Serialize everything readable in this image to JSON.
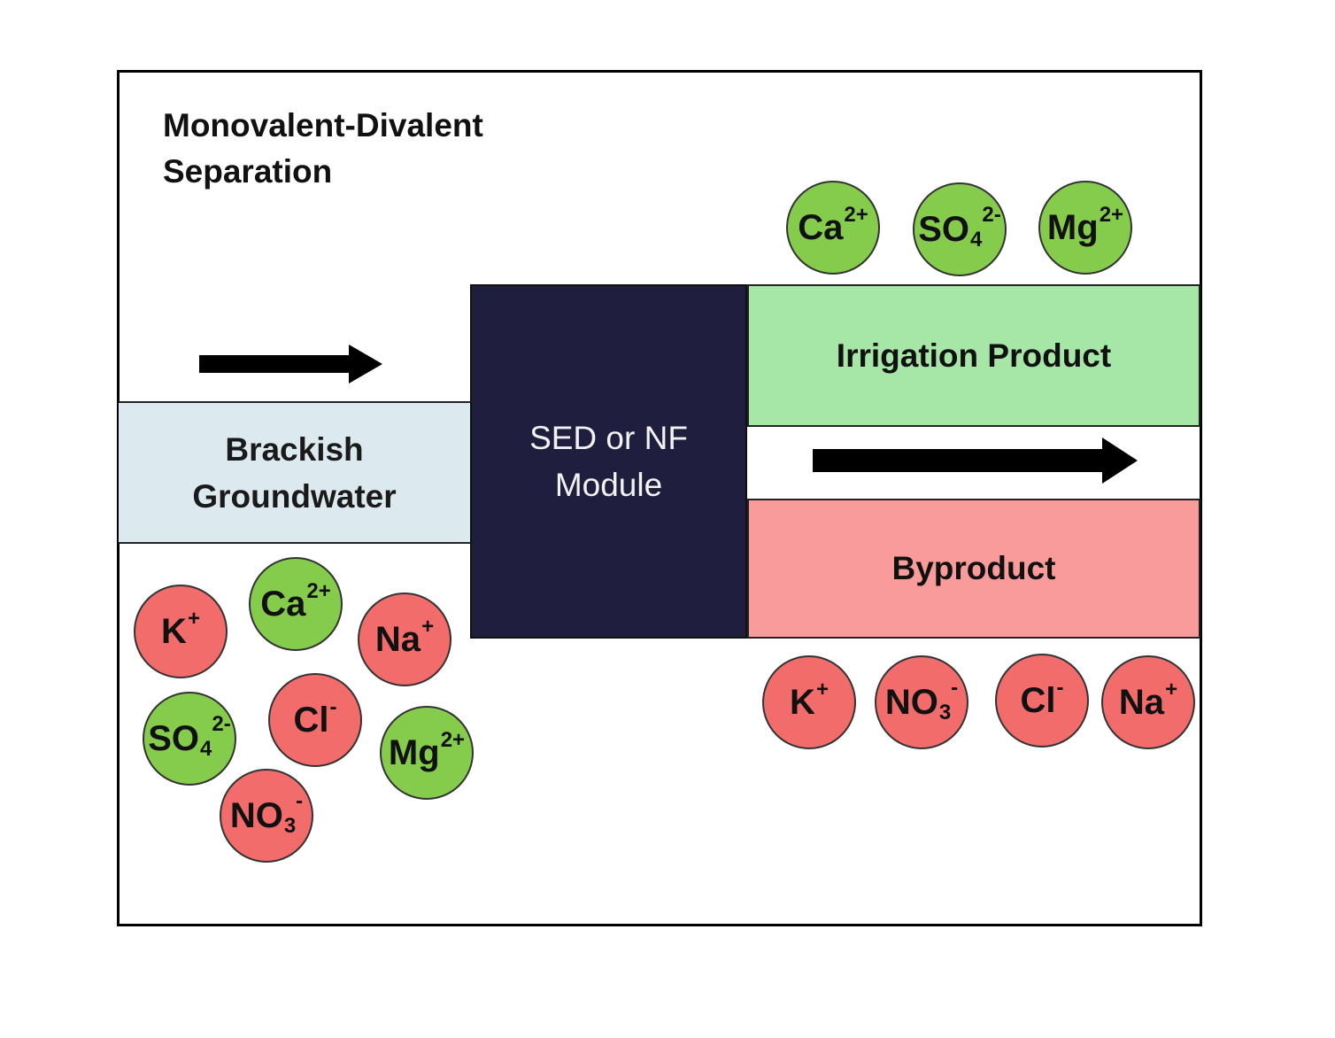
{
  "title": {
    "line1": "Monovalent-Divalent",
    "line2": "Separation"
  },
  "feed": {
    "line1": "Brackish",
    "line2": "Groundwater"
  },
  "module": {
    "line1": "SED or NF",
    "line2": "Module"
  },
  "irrigation": {
    "label": "Irrigation Product"
  },
  "byproduct": {
    "label": "Byproduct"
  },
  "colors": {
    "divalent": "#86cc4c",
    "monovalent": "#f26c6c",
    "feed_fill": "#dce9ef",
    "module_fill": "#1f1e3e",
    "irrigation_fill": "#a6e6a6",
    "byproduct_fill": "#f99b9b"
  },
  "ions": {
    "feed": [
      {
        "base": "K",
        "sub": "",
        "sup": "+",
        "type": "monovalent"
      },
      {
        "base": "Ca",
        "sub": "",
        "sup": "2+",
        "type": "divalent"
      },
      {
        "base": "Na",
        "sub": "",
        "sup": "+",
        "type": "monovalent"
      },
      {
        "base": "SO",
        "sub": "4",
        "sup": "2-",
        "type": "divalent"
      },
      {
        "base": "Cl",
        "sub": "",
        "sup": "-",
        "type": "monovalent"
      },
      {
        "base": "Mg",
        "sub": "",
        "sup": "2+",
        "type": "divalent"
      },
      {
        "base": "NO",
        "sub": "3",
        "sup": "-",
        "type": "monovalent"
      }
    ],
    "irrigation": [
      {
        "base": "Ca",
        "sub": "",
        "sup": "2+",
        "type": "divalent"
      },
      {
        "base": "SO",
        "sub": "4",
        "sup": "2-",
        "type": "divalent"
      },
      {
        "base": "Mg",
        "sub": "",
        "sup": "2+",
        "type": "divalent"
      }
    ],
    "byproduct": [
      {
        "base": "K",
        "sub": "",
        "sup": "+",
        "type": "monovalent"
      },
      {
        "base": "NO",
        "sub": "3",
        "sup": "-",
        "type": "monovalent"
      },
      {
        "base": "Cl",
        "sub": "",
        "sup": "-",
        "type": "monovalent"
      },
      {
        "base": "Na",
        "sub": "",
        "sup": "+",
        "type": "monovalent"
      }
    ]
  }
}
